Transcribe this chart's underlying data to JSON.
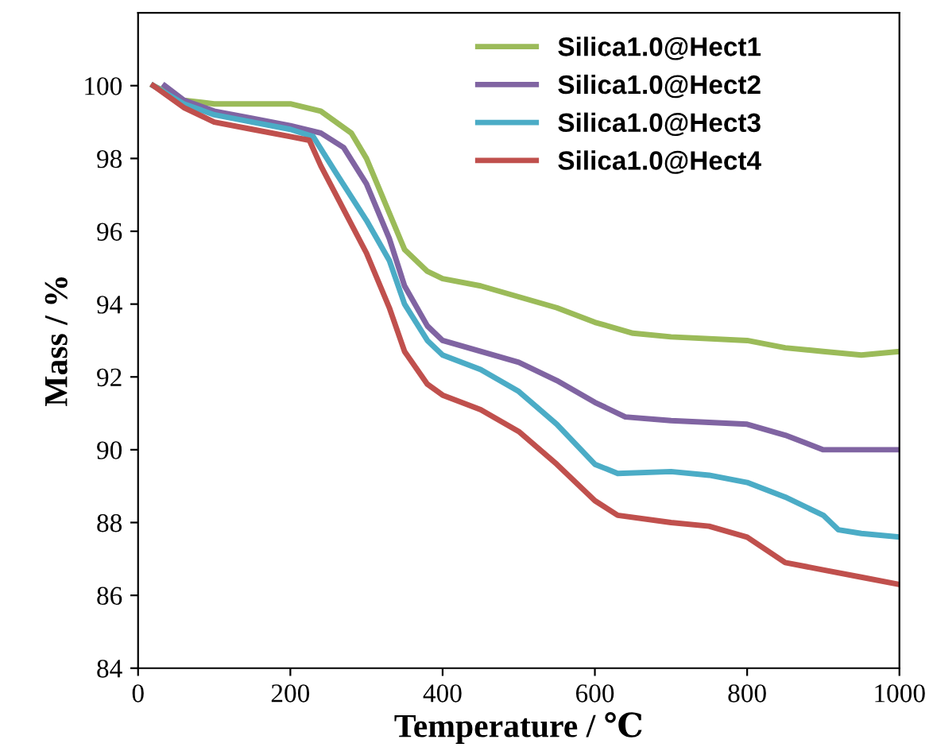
{
  "chart_data": {
    "type": "line",
    "xlabel": "Temperature / ℃",
    "ylabel": "Mass / %",
    "xlim": [
      0,
      1000
    ],
    "xticks": [
      0,
      200,
      400,
      600,
      800,
      1000
    ],
    "ylim": [
      84,
      102
    ],
    "yticks": [
      84,
      86,
      88,
      90,
      92,
      94,
      96,
      98,
      100
    ],
    "grid": false,
    "legend": "top right",
    "marker": "none",
    "line_style": "solid",
    "series": [
      {
        "name": "Silica1.0@Hect1",
        "color": "#9bbb59",
        "x": [
          20,
          60,
          100,
          150,
          200,
          240,
          280,
          300,
          320,
          350,
          380,
          400,
          450,
          500,
          550,
          600,
          650,
          700,
          800,
          850,
          900,
          950,
          1000
        ],
        "values": [
          100,
          99.6,
          99.5,
          99.5,
          99.5,
          99.3,
          98.7,
          98.0,
          97.0,
          95.5,
          94.9,
          94.7,
          94.5,
          94.2,
          93.9,
          93.5,
          93.2,
          93.1,
          93.0,
          92.8,
          92.7,
          92.6,
          92.7
        ]
      },
      {
        "name": "Silica1.0@Hect2",
        "color": "#8064a2",
        "x": [
          35,
          60,
          100,
          150,
          200,
          240,
          270,
          300,
          330,
          350,
          380,
          400,
          450,
          500,
          550,
          600,
          640,
          700,
          800,
          850,
          900,
          950,
          1000
        ],
        "values": [
          100,
          99.6,
          99.3,
          99.1,
          98.9,
          98.7,
          98.3,
          97.3,
          95.8,
          94.5,
          93.4,
          93.0,
          92.7,
          92.4,
          91.9,
          91.3,
          90.9,
          90.8,
          90.7,
          90.4,
          90.0,
          90.0,
          90.0
        ]
      },
      {
        "name": "Silica1.0@Hect3",
        "color": "#4bacc6",
        "x": [
          20,
          60,
          100,
          150,
          200,
          230,
          260,
          300,
          330,
          350,
          380,
          400,
          450,
          500,
          550,
          600,
          630,
          700,
          750,
          800,
          850,
          900,
          920,
          950,
          1000
        ],
        "values": [
          100,
          99.5,
          99.2,
          99.0,
          98.8,
          98.6,
          97.6,
          96.3,
          95.2,
          94.0,
          93.0,
          92.6,
          92.2,
          91.6,
          90.7,
          89.6,
          89.35,
          89.4,
          89.3,
          89.1,
          88.7,
          88.2,
          87.8,
          87.7,
          87.6
        ]
      },
      {
        "name": "Silica1.0@Hect4",
        "color": "#c0504d",
        "x": [
          20,
          60,
          100,
          150,
          200,
          225,
          240,
          270,
          300,
          330,
          350,
          380,
          400,
          450,
          500,
          550,
          600,
          630,
          700,
          750,
          800,
          850,
          900,
          950,
          1000
        ],
        "values": [
          100,
          99.4,
          99.0,
          98.8,
          98.6,
          98.5,
          97.8,
          96.6,
          95.4,
          93.9,
          92.7,
          91.8,
          91.5,
          91.1,
          90.5,
          89.6,
          88.6,
          88.2,
          88.0,
          87.9,
          87.6,
          86.9,
          86.7,
          86.5,
          86.3
        ]
      }
    ]
  }
}
